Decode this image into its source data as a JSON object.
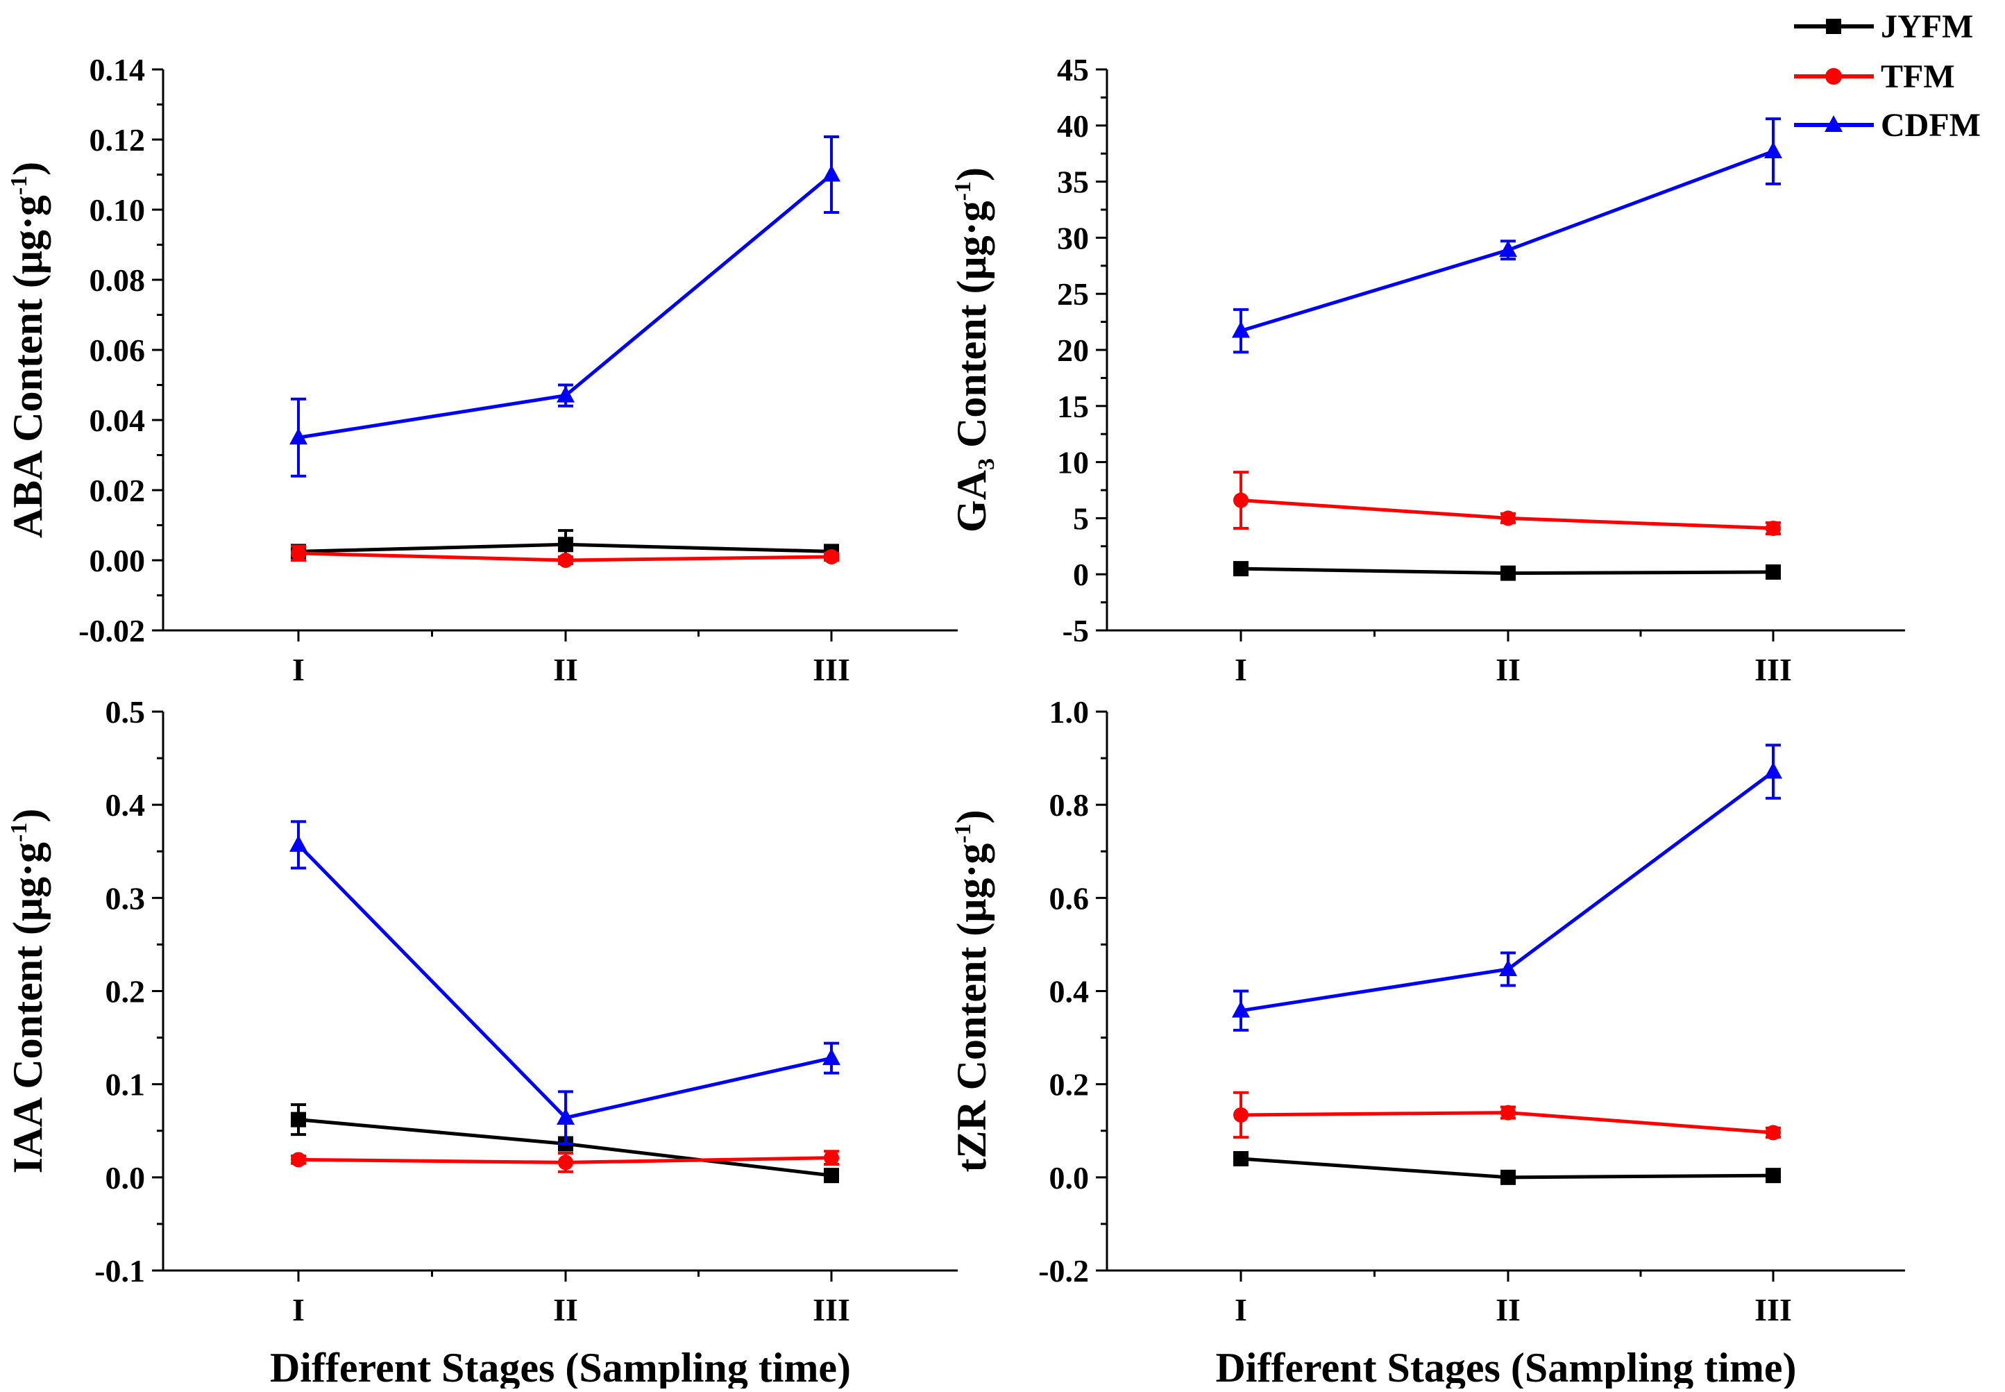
{
  "chart_data": {
    "type": "line",
    "legend": {
      "placement": "top-right",
      "entries": [
        {
          "name": "JYFM",
          "color": "#000000",
          "marker": "square"
        },
        {
          "name": "TFM",
          "color": "#ff0000",
          "marker": "circle"
        },
        {
          "name": "CDFM",
          "color": "#0000ff",
          "marker": "triangle"
        }
      ]
    },
    "panels": [
      {
        "id": "aba",
        "ylabel": {
          "pre": "ABA Content (μg·g",
          "sup": "-1",
          "post": ")"
        },
        "xlabel": "",
        "categories": [
          "I",
          "II",
          "III"
        ],
        "ylim": [
          -0.02,
          0.14
        ],
        "yticks": [
          -0.02,
          0.0,
          0.02,
          0.04,
          0.06,
          0.08,
          0.1,
          0.12,
          0.14
        ],
        "ytick_labels": [
          "-0.02",
          "0.00",
          "0.02",
          "0.04",
          "0.06",
          "0.08",
          "0.10",
          "0.12",
          "0.14"
        ],
        "series": [
          {
            "name": "JYFM",
            "values": [
              0.0025,
              0.0045,
              0.0025
            ],
            "errors": [
              0.001,
              0.004,
              0.001
            ]
          },
          {
            "name": "TFM",
            "values": [
              0.002,
              0.0,
              0.001
            ],
            "errors": [
              0.002,
              0.001,
              0.001
            ]
          },
          {
            "name": "CDFM",
            "values": [
              0.035,
              0.047,
              0.11
            ],
            "errors": [
              0.011,
              0.003,
              0.0108
            ]
          }
        ]
      },
      {
        "id": "ga3",
        "ylabel": {
          "pre": "GA",
          "sub": "3",
          "post": " Content (μg·g",
          "sup": "-1",
          "end": ")"
        },
        "xlabel": "",
        "categories": [
          "I",
          "II",
          "III"
        ],
        "ylim": [
          -5,
          45
        ],
        "yticks": [
          -5,
          0,
          5,
          10,
          15,
          20,
          25,
          30,
          35,
          40,
          45
        ],
        "ytick_labels": [
          "-5",
          "0",
          "5",
          "10",
          "15",
          "20",
          "25",
          "30",
          "35",
          "40",
          "45"
        ],
        "series": [
          {
            "name": "JYFM",
            "values": [
              0.5,
              0.1,
              0.2
            ],
            "errors": [
              0.3,
              0.2,
              0.2
            ]
          },
          {
            "name": "TFM",
            "values": [
              6.6,
              5.0,
              4.1
            ],
            "errors": [
              2.5,
              0.4,
              0.5
            ]
          },
          {
            "name": "CDFM",
            "values": [
              21.7,
              28.9,
              37.7
            ],
            "errors": [
              1.9,
              0.8,
              2.9
            ]
          }
        ]
      },
      {
        "id": "iaa",
        "ylabel": {
          "pre": "IAA Content (μg·g",
          "sup": "-1",
          "post": ")"
        },
        "xlabel": "Different Stages (Sampling time)",
        "categories": [
          "I",
          "II",
          "III"
        ],
        "ylim": [
          -0.1,
          0.5
        ],
        "yticks": [
          -0.1,
          0.0,
          0.1,
          0.2,
          0.3,
          0.4,
          0.5
        ],
        "ytick_labels": [
          "-0.1",
          "0.0",
          "0.1",
          "0.2",
          "0.3",
          "0.4",
          "0.5"
        ],
        "series": [
          {
            "name": "JYFM",
            "values": [
              0.062,
              0.036,
              0.002
            ],
            "errors": [
              0.016,
              0.004,
              0.003
            ]
          },
          {
            "name": "TFM",
            "values": [
              0.019,
              0.016,
              0.021
            ],
            "errors": [
              0.004,
              0.01,
              0.007
            ]
          },
          {
            "name": "CDFM",
            "values": [
              0.357,
              0.064,
              0.128
            ],
            "errors": [
              0.025,
              0.028,
              0.016
            ]
          }
        ]
      },
      {
        "id": "tzr",
        "ylabel": {
          "pre": "tZR Content (μg·g",
          "sup": "-1",
          "post": ")"
        },
        "xlabel": "Different Stages (Sampling time)",
        "categories": [
          "I",
          "II",
          "III"
        ],
        "ylim": [
          -0.2,
          1.0
        ],
        "yticks": [
          -0.2,
          0.0,
          0.2,
          0.4,
          0.6,
          0.8,
          1.0
        ],
        "ytick_labels": [
          "-0.2",
          "0.0",
          "0.2",
          "0.4",
          "0.6",
          "0.8",
          "1.0"
        ],
        "series": [
          {
            "name": "JYFM",
            "values": [
              0.04,
              0.0,
              0.004
            ],
            "errors": [
              0.01,
              0.005,
              0.005
            ]
          },
          {
            "name": "TFM",
            "values": [
              0.134,
              0.139,
              0.096
            ],
            "errors": [
              0.048,
              0.012,
              0.01
            ]
          },
          {
            "name": "CDFM",
            "values": [
              0.358,
              0.447,
              0.871
            ],
            "errors": [
              0.042,
              0.035,
              0.057
            ]
          }
        ]
      }
    ]
  }
}
